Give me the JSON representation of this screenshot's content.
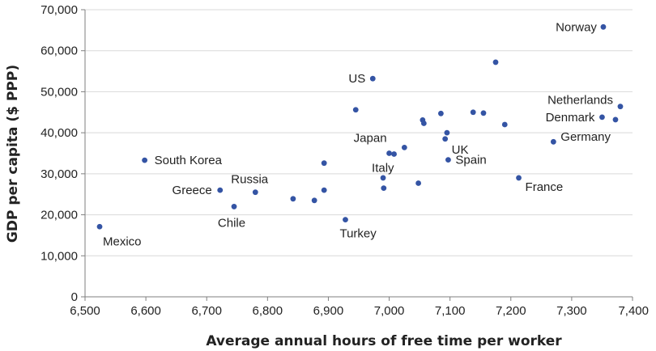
{
  "chart_data": {
    "type": "scatter",
    "title": "",
    "xlabel": "Average annual hours of free time per worker",
    "ylabel": "GDP per capita ($ PPP)",
    "xlim": [
      6500,
      7400
    ],
    "ylim": [
      0,
      70000
    ],
    "x_ticks": [
      6500,
      6600,
      6700,
      6800,
      6900,
      7000,
      7100,
      7200,
      7300,
      7400
    ],
    "y_ticks": [
      0,
      10000,
      20000,
      30000,
      40000,
      50000,
      60000,
      70000
    ],
    "x_tick_labels": [
      "6,500",
      "6,600",
      "6,700",
      "6,800",
      "6,900",
      "7,000",
      "7,100",
      "7,200",
      "7,300",
      "7,400"
    ],
    "y_tick_labels": [
      "0",
      "10,000",
      "20,000",
      "30,000",
      "40,000",
      "50,000",
      "60,000",
      "70,000"
    ],
    "grid": "horizontal",
    "point_color": "#3454a4",
    "points": [
      {
        "x": 7352,
        "y": 65800,
        "label": "Norway"
      },
      {
        "x": 6973,
        "y": 53200,
        "label": "US"
      },
      {
        "x": 7175,
        "y": 57200,
        "label": ""
      },
      {
        "x": 6945,
        "y": 45600,
        "label": ""
      },
      {
        "x": 7085,
        "y": 44700,
        "label": ""
      },
      {
        "x": 7138,
        "y": 45000,
        "label": ""
      },
      {
        "x": 7155,
        "y": 44800,
        "label": ""
      },
      {
        "x": 7380,
        "y": 46400,
        "label": "Netherlands"
      },
      {
        "x": 7350,
        "y": 43800,
        "label": "Denmark"
      },
      {
        "x": 7372,
        "y": 43200,
        "label": "Germany"
      },
      {
        "x": 7190,
        "y": 42000,
        "label": ""
      },
      {
        "x": 7055,
        "y": 43100,
        "label": ""
      },
      {
        "x": 7057,
        "y": 42300,
        "label": ""
      },
      {
        "x": 7095,
        "y": 40000,
        "label": ""
      },
      {
        "x": 7092,
        "y": 38500,
        "label": "UK"
      },
      {
        "x": 7270,
        "y": 37800,
        "label": ""
      },
      {
        "x": 7025,
        "y": 36400,
        "label": ""
      },
      {
        "x": 7000,
        "y": 35000,
        "label": "Japan"
      },
      {
        "x": 7008,
        "y": 34800,
        "label": "Italy"
      },
      {
        "x": 7097,
        "y": 33400,
        "label": "Spain"
      },
      {
        "x": 6598,
        "y": 33300,
        "label": "South Korea"
      },
      {
        "x": 6893,
        "y": 32600,
        "label": ""
      },
      {
        "x": 6990,
        "y": 29000,
        "label": ""
      },
      {
        "x": 7213,
        "y": 29000,
        "label": "France"
      },
      {
        "x": 7048,
        "y": 27700,
        "label": ""
      },
      {
        "x": 6991,
        "y": 26500,
        "label": ""
      },
      {
        "x": 6893,
        "y": 26000,
        "label": ""
      },
      {
        "x": 6722,
        "y": 26000,
        "label": "Greece"
      },
      {
        "x": 6780,
        "y": 25500,
        "label": "Russia"
      },
      {
        "x": 6842,
        "y": 23900,
        "label": ""
      },
      {
        "x": 6877,
        "y": 23500,
        "label": ""
      },
      {
        "x": 6745,
        "y": 22000,
        "label": "Chile"
      },
      {
        "x": 6928,
        "y": 18800,
        "label": "Turkey"
      },
      {
        "x": 6524,
        "y": 17100,
        "label": "Mexico"
      }
    ]
  }
}
